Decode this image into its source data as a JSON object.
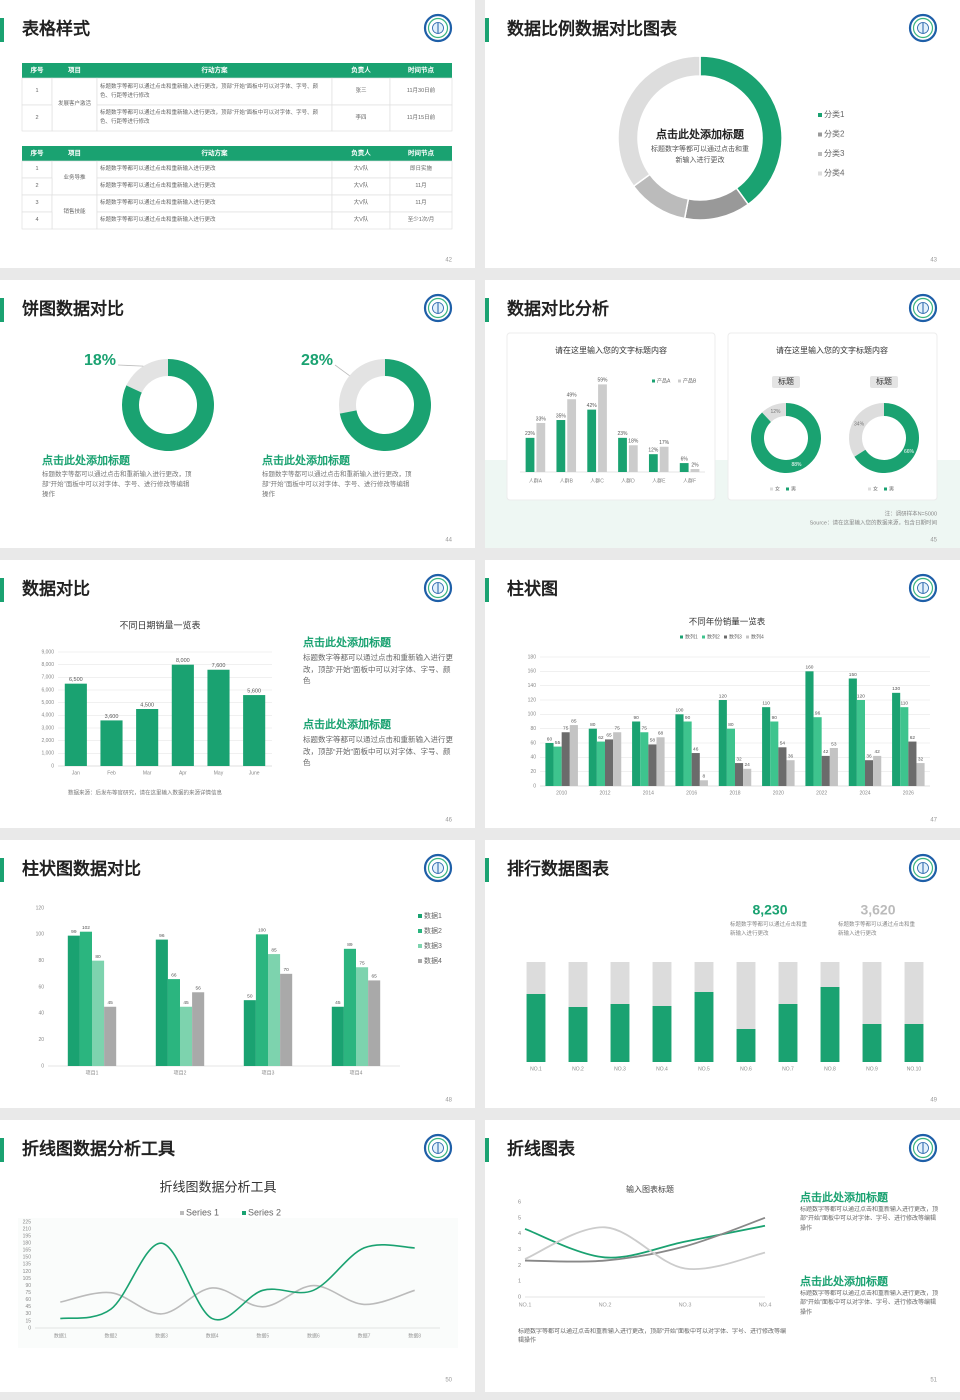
{
  "slides": [
    {
      "title": "表格样式",
      "page": 42,
      "tables": [
        {
          "header": [
            "序号",
            "项目",
            "行动方案",
            "负责人",
            "时间节点"
          ],
          "rows": [
            [
              "1",
              "发展客户激活",
              "标题数字等都可以通过点击和重新输入进行更改，顶部“开始”面板中可以对字体、字号、颜色、行距等进行修改",
              "张三",
              "11月30日前"
            ],
            [
              "2",
              null,
              "标题数字等都可以通过点击和重新输入进行更改，顶部“开始”面板中可以对字体、字号、颜色、行距等进行修改",
              "李四",
              "11月15日前"
            ]
          ]
        },
        {
          "header": [
            "序号",
            "项目",
            "行动方案",
            "负责人",
            "时间节点"
          ],
          "rows": [
            [
              "1",
              "业务导推",
              "标题数字等都可以通过点击和重新输入进行更改",
              "大V队",
              "即日实施"
            ],
            [
              "2",
              null,
              "标题数字等都可以通过点击和重新输入进行更改",
              "大V队",
              "11月"
            ],
            [
              "3",
              "销售技能",
              "标题数字等都可以通过点击和重新输入进行更改",
              "大V队",
              "11月"
            ],
            [
              "4",
              null,
              "标题数字等都可以通过点击和重新输入进行更改",
              "大V队",
              "至少1次/月"
            ]
          ]
        }
      ]
    },
    {
      "title": "数据比例数据对比图表",
      "page": 43,
      "center_title": "点击此处添加标题",
      "center_text": "标题数字等都可以通过点击和重新输入进行更改"
    },
    {
      "title": "饼图数据对比",
      "page": 44,
      "blocks": [
        {
          "heading": "点击此处添加标题",
          "text": "标题数字等都可以通过点击和重新输入进行更改，顶部“开始”面板中可以对字体、字号、进行修改等编辑操作"
        },
        {
          "heading": "点击此处添加标题",
          "text": "标题数字等都可以通过点击和重新输入进行更改，顶部“开始”面板中可以对字体、字号、进行修改等编辑操作"
        }
      ]
    },
    {
      "title": "数据对比分析",
      "page": 45,
      "card_title": "请在这里输入您的文字标题内容",
      "note": "注：调研样本N=5000",
      "source": "Source：请在这里输入您的数据来源，包含日期时间"
    },
    {
      "title": "数据对比",
      "page": 46,
      "note": "数据来源：后发布等官研究，请在这里输入数据的来源详情信息",
      "blocks": [
        {
          "heading": "点击此处添加标题",
          "text": "标题数字等都可以通过点击和重新输入进行更改，顶部“开始”面板中可以对字体、字号、颜色"
        },
        {
          "heading": "点击此处添加标题",
          "text": "标题数字等都可以通过点击和重新输入进行更改，顶部“开始”面板中可以对字体、字号、颜色"
        }
      ]
    },
    {
      "title": "柱状图",
      "page": 47
    },
    {
      "title": "柱状图数据对比",
      "page": 48
    },
    {
      "title": "排行数据图表",
      "page": 49,
      "stats": [
        {
          "number": "8,230",
          "text": "标题数字等都可以通过点击和重新输入进行更改"
        },
        {
          "number": "3,620",
          "text": "标题数字等都可以通过点击和重新输入进行更改"
        }
      ]
    },
    {
      "title": "折线图数据分析工具",
      "page": 50
    },
    {
      "title": "折线图表",
      "page": 51,
      "caption": "标题数字等都可以通过点击和重新输入进行更改，顶部“开始”面板中可以对字体、字号、进行修改等编辑操作",
      "blocks": [
        {
          "heading": "点击此处添加标题",
          "text": "标题数字等都可以通过点击和重新输入进行更改，顶部“开始”面板中可以对字体、字号、进行修改等编辑操作"
        },
        {
          "heading": "点击此处添加标题",
          "text": "标题数字等都可以通过点击和重新输入进行更改，顶部“开始”面板中可以对字体、字号、进行修改等编辑操作"
        }
      ]
    }
  ],
  "chart_data": [
    {
      "type": "pie",
      "categories": [
        "分类1",
        "分类2",
        "分类3",
        "分类4"
      ],
      "values": [
        40,
        13,
        12,
        35
      ],
      "colors": [
        "#1aa271",
        "#999999",
        "#bbbbbb",
        "#dddddd"
      ],
      "legend": "right"
    },
    {
      "type": "pie",
      "values": [
        18,
        82
      ],
      "value_labels": [
        "18%",
        null
      ],
      "colors": [
        "#e3e3e3",
        "#1aa271"
      ]
    },
    {
      "type": "pie",
      "values": [
        28,
        72
      ],
      "value_labels": [
        "28%",
        null
      ],
      "colors": [
        "#e3e3e3",
        "#1aa271"
      ]
    },
    {
      "type": "bar",
      "title": "请在这里输入您的文字标题内容",
      "categories": [
        "人群A",
        "人群B",
        "人群C",
        "人群D",
        "人群E",
        "人群F"
      ],
      "legend": "top",
      "series": [
        {
          "name": "产品A",
          "color": "#1aa271",
          "values": [
            23,
            35,
            42,
            23,
            12,
            6
          ],
          "value_labels": [
            "23%",
            "35%",
            "42%",
            "23%",
            "12%",
            "6%"
          ]
        },
        {
          "name": "产品B",
          "color": "#cccccc",
          "values": [
            33,
            49,
            59,
            18,
            17,
            2
          ],
          "value_labels": [
            "33%",
            "49%",
            "59%",
            "18%",
            "17%",
            "2%"
          ]
        }
      ]
    },
    {
      "type": "pie",
      "title": "标题",
      "categories": [
        "女",
        "男"
      ],
      "values": [
        12,
        88
      ],
      "value_labels": [
        "12%",
        "88%"
      ],
      "colors": [
        "#dddddd",
        "#1aa271"
      ],
      "legend": "bottom"
    },
    {
      "type": "pie",
      "title": "标题",
      "categories": [
        "女",
        "男"
      ],
      "values": [
        34,
        66
      ],
      "value_labels": [
        "34%",
        "66%"
      ],
      "colors": [
        "#dddddd",
        "#1aa271"
      ],
      "legend": "bottom"
    },
    {
      "type": "bar",
      "title": "不同日期销量一览表",
      "categories": [
        "Jan",
        "Feb",
        "Mar",
        "Apr",
        "May",
        "June"
      ],
      "values": [
        6500,
        3600,
        4500,
        8000,
        7600,
        5600
      ],
      "value_labels": [
        "6,500",
        "3,600",
        "4,500",
        "8,000",
        "7,600",
        "5,600"
      ],
      "color": "#1aa271",
      "ylim": [
        0,
        9000
      ],
      "yticks": [
        0,
        {
          "value": 1000,
          "label": "1,000"
        },
        {
          "value": 2000,
          "label": "2,000"
        },
        {
          "value": 3000,
          "label": "3,000"
        },
        {
          "value": 4000,
          "label": "4,000"
        },
        {
          "value": 5000,
          "label": "5,000"
        },
        {
          "value": 6000,
          "label": "6,000"
        },
        {
          "value": 7000,
          "label": "7,000"
        },
        {
          "value": 8000,
          "label": "8,000"
        },
        {
          "value": 9000,
          "label": "9,000"
        }
      ],
      "grid": true
    },
    {
      "type": "bar",
      "title": "不同年份销量一览表",
      "categories": [
        "2010",
        "2012",
        "2014",
        "2016",
        "2018",
        "2020",
        "2022",
        "2024",
        "2026"
      ],
      "legend": "top",
      "series": [
        {
          "name": "数列1",
          "color": "#1aa271",
          "values": [
            60,
            80,
            90,
            100,
            120,
            110,
            160,
            150,
            130
          ]
        },
        {
          "name": "数列2",
          "color": "#3ec48e",
          "values": [
            55,
            62,
            75,
            90,
            80,
            90,
            96,
            120,
            110
          ]
        },
        {
          "name": "数列3",
          "color": "#6b6b6b",
          "values": [
            75,
            65,
            58,
            46,
            32,
            54,
            42,
            36,
            62
          ]
        },
        {
          "name": "数列4",
          "color": "#c4c4c4",
          "values": [
            85,
            75,
            68,
            8,
            24,
            36,
            53,
            42,
            32
          ]
        }
      ],
      "ylim": [
        0,
        180
      ],
      "yticks": [
        0,
        20,
        40,
        60,
        80,
        100,
        120,
        140,
        160,
        180
      ],
      "grid": true
    },
    {
      "type": "bar",
      "categories": [
        "项目1",
        "项目2",
        "项目3",
        "项目4"
      ],
      "legend": "right",
      "series": [
        {
          "name": "数据1",
          "color": "#1aa271",
          "values": [
            99,
            96,
            50,
            45
          ]
        },
        {
          "name": "数据2",
          "color": "#2bb57f",
          "values": [
            102,
            66,
            100,
            89
          ]
        },
        {
          "name": "数据3",
          "color": "#7dd3ae",
          "values": [
            80,
            45,
            85,
            75
          ]
        },
        {
          "name": "数据4",
          "color": "#a9a9a9",
          "values": [
            45,
            56,
            70,
            65
          ]
        }
      ],
      "ylim": [
        0,
        120
      ],
      "yticks": [
        0,
        20,
        40,
        60,
        80,
        100,
        120
      ]
    },
    {
      "type": "bar",
      "stacked": true,
      "categories": [
        "NO.1",
        "NO.2",
        "NO.3",
        "NO.4",
        "NO.5",
        "NO.6",
        "NO.7",
        "NO.8",
        "NO.9",
        "NO.10"
      ],
      "series": [
        {
          "color": "#1aa271",
          "values": [
            68,
            55,
            58,
            56,
            70,
            33,
            58,
            75,
            38,
            38
          ]
        },
        {
          "color": "#dcdcdc",
          "values": [
            32,
            45,
            42,
            44,
            30,
            67,
            42,
            25,
            62,
            62
          ]
        }
      ]
    },
    {
      "type": "line",
      "title": "折线图数据分析工具",
      "smooth": true,
      "legend": "top",
      "categories": [
        "数据1",
        "数据2",
        "数据3",
        "数据4",
        "数据5",
        "数据6",
        "数据7",
        "数据8"
      ],
      "series": [
        {
          "name": "Series 1",
          "color": "#bbbbbb",
          "values": [
            55,
            75,
            30,
            85,
            45,
            90,
            50,
            80
          ]
        },
        {
          "name": "Series 2",
          "color": "#1aa271",
          "values": [
            20,
            40,
            180,
            20,
            80,
            80,
            170,
            170
          ]
        }
      ],
      "ylim": [
        0,
        225
      ],
      "yticks": [
        0,
        15,
        30,
        45,
        60,
        75,
        90,
        105,
        120,
        135,
        150,
        165,
        180,
        195,
        210,
        225
      ]
    },
    {
      "type": "line",
      "title": "输入图表标题",
      "smooth": true,
      "categories": [
        "NO.1",
        "NO.2",
        "NO.3",
        "NO.4"
      ],
      "series": [
        {
          "color": "#1aa271",
          "values": [
            4.3,
            2.5,
            3.5,
            4.5
          ]
        },
        {
          "color": "#888888",
          "values": [
            2.3,
            2.3,
            3.2,
            5
          ]
        },
        {
          "color": "#cccccc",
          "values": [
            2.4,
            4.4,
            1.8,
            2.8
          ]
        }
      ],
      "ylim": [
        0,
        6
      ],
      "yticks": [
        0,
        1,
        2,
        3,
        4,
        5,
        6
      ]
    }
  ]
}
